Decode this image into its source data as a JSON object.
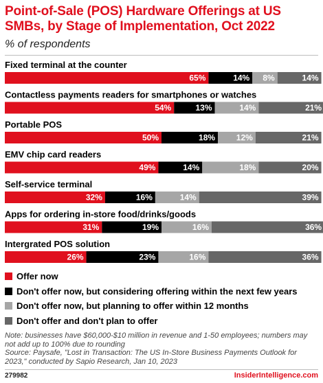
{
  "title": "Point-of-Sale (POS) Hardware Offerings at US SMBs, by Stage of Implementation, Oct 2022",
  "subtitle": "% of respondents",
  "colors": {
    "offer_now": "#e0101e",
    "considering": "#000000",
    "planning": "#a6a6a6",
    "no_plan": "#676767",
    "brand": "#e0101e"
  },
  "chart_data": {
    "type": "bar",
    "orientation": "horizontal",
    "stacked": true,
    "xlim": [
      0,
      100
    ],
    "unit": "%",
    "grid": false,
    "legend_position": "bottom",
    "categories": [
      "Fixed terminal at the counter",
      "Contactless payments readers for smartphones or watches",
      "Portable POS",
      "EMV chip card readers",
      "Self-service terminal",
      "Apps for ordering in-store food/drinks/goods",
      "Intergrated POS solution"
    ],
    "series": [
      {
        "name": "Offer now",
        "color": "#e0101e",
        "values": [
          65,
          54,
          50,
          49,
          32,
          31,
          26
        ]
      },
      {
        "name": "Don't offer now, but considering offering within the next few years",
        "color": "#000000",
        "values": [
          14,
          13,
          18,
          14,
          16,
          19,
          23
        ]
      },
      {
        "name": "Don't offer now, but planning to offer within 12 months",
        "color": "#a6a6a6",
        "values": [
          8,
          14,
          12,
          18,
          14,
          16,
          16
        ]
      },
      {
        "name": "Don't offer and don't plan to offer",
        "color": "#676767",
        "values": [
          14,
          21,
          21,
          20,
          39,
          36,
          36
        ]
      }
    ]
  },
  "notes": {
    "note": "Note: businesses have $60,000-$10 million in revenue and 1-50 employees; numbers may not add up to 100% due to rounding",
    "source": "Source: Paysafe, \"Lost in Transaction: The US In-Store Business Payments Outlook for 2023,\" conducted by Sapio Research, Jan 10, 2023"
  },
  "footer": {
    "chart_id": "279982",
    "brand": "InsiderIntelligence.com"
  }
}
